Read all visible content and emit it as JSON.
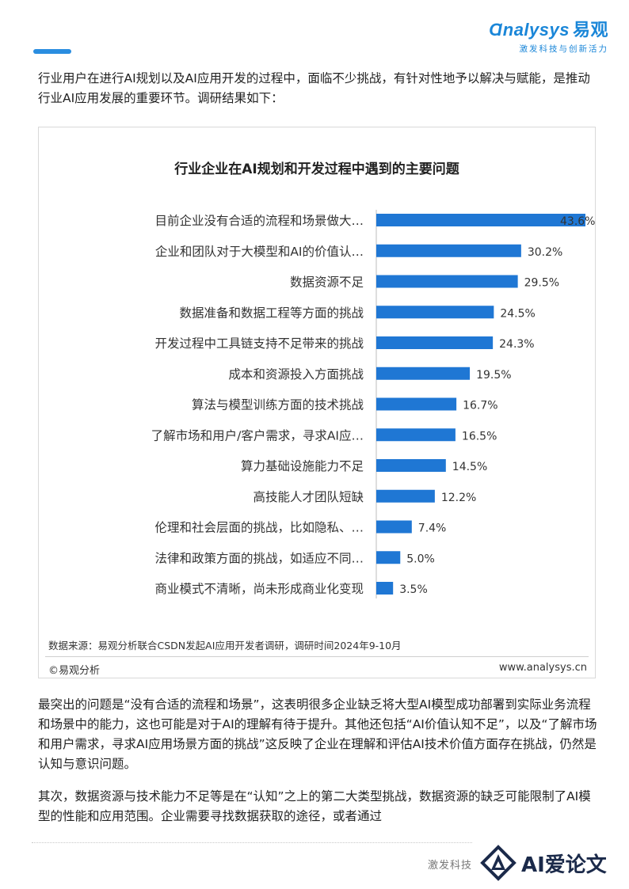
{
  "header": {
    "logo_text": "nalysys",
    "logo_cn": "易观",
    "tagline": "激发科技与创新活力"
  },
  "intro": "行业用户在进行AI规划以及AI应用开发的过程中，面临不少挑战，有针对性地予以解决与赋能，是推动行业AI应用发展的重要环节。调研结果如下：",
  "chart_data": {
    "type": "bar",
    "orientation": "horizontal",
    "title": "行业企业在AI规划和开发过程中遇到的主要问题",
    "categories": [
      "目前企业没有合适的流程和场景做大…",
      "企业和团队对于大模型和AI的价值认…",
      "数据资源不足",
      "数据准备和数据工程等方面的挑战",
      "开发过程中工具链支持不足带来的挑战",
      "成本和资源投入方面挑战",
      "算法与模型训练方面的技术挑战",
      "了解市场和用户/客户需求，寻求AI应…",
      "算力基础设施能力不足",
      "高技能人才团队短缺",
      "伦理和社会层面的挑战，比如隐私、…",
      "法律和政策方面的挑战，如适应不同…",
      "商业模式不清晰，尚未形成商业化变现"
    ],
    "values": [
      43.6,
      30.2,
      29.5,
      24.5,
      24.3,
      19.5,
      16.7,
      16.5,
      14.5,
      12.2,
      7.4,
      5.0,
      3.5
    ],
    "value_labels": [
      "43.6%",
      "30.2%",
      "29.5%",
      "24.5%",
      "24.3%",
      "19.5%",
      "16.7%",
      "16.5%",
      "14.5%",
      "12.2%",
      "7.4%",
      "5.0%",
      "3.5%"
    ],
    "bar_color": "#1f77d4",
    "grid": false,
    "legend": "none"
  },
  "chart_footer": {
    "source": "数据来源：易观分析联合CSDN发起AI应用开发者调研，调研时间2024年9-10月",
    "copyright": "©易观分析",
    "website": "www.analysys.cn"
  },
  "body": {
    "p1": "最突出的问题是“没有合适的流程和场景”，这表明很多企业缺乏将大型AI模型成功部署到实际业务流程和场景中的能力，这也可能是对于AI的理解有待于提升。其他还包括“AI价值认知不足”，以及“了解市场和用户需求，寻求AI应用场景方面的挑战”这反映了企业在理解和评估AI技术价值方面存在挑战，仍然是认知与意识问题。",
    "p2": "其次，数据资源与技术能力不足等是在“认知”之上的第二大类型挑战，数据资源的缺乏可能限制了AI模型的性能和应用范围。企业需要寻找数据获取的途径，或者通过"
  },
  "footer": {
    "text": "激发科技",
    "watermark_text": "AI爱论文"
  },
  "colors": {
    "brand": "#1a86d8",
    "accent": "#2a8de0"
  }
}
